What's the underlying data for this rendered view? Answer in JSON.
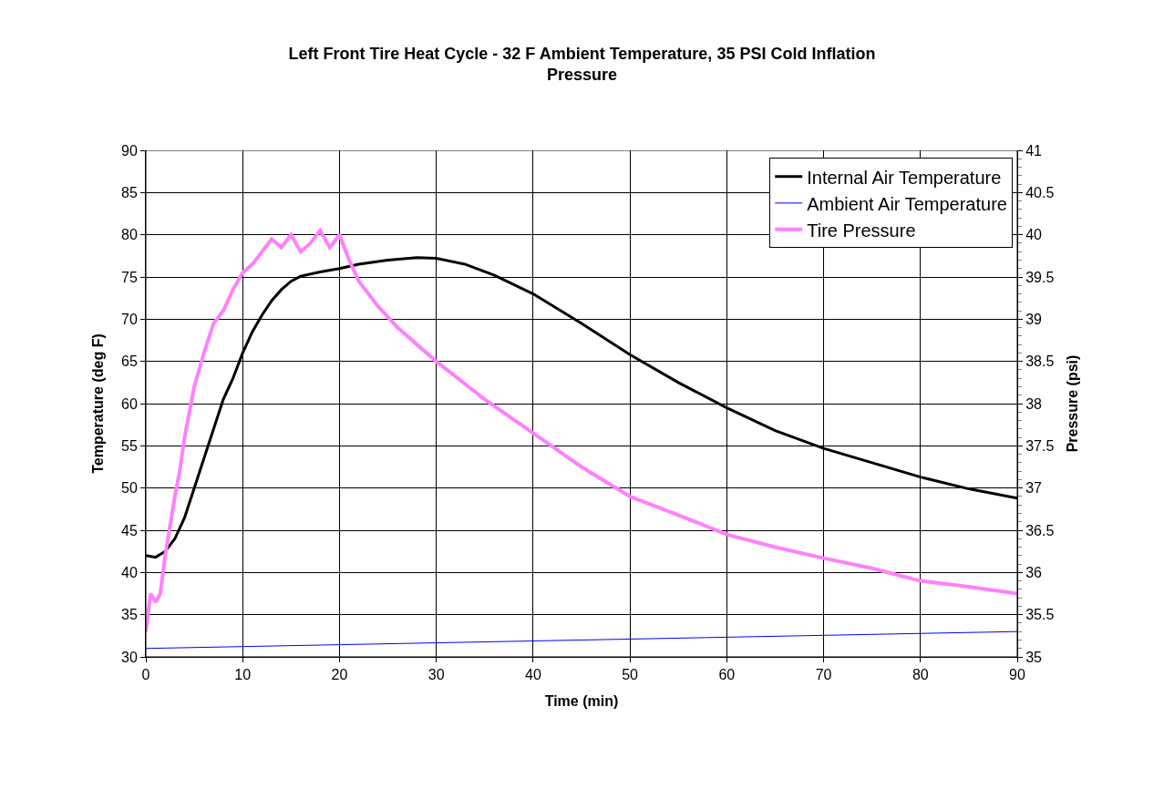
{
  "chart_data": {
    "type": "line",
    "title": "Left Front Tire Heat Cycle - 32 F Ambient Temperature, 35 PSI Cold Inflation Pressure",
    "xlabel": "Time (min)",
    "ylabel": "Temperature (deg F)",
    "y2label": "Pressure (psi)",
    "xlim": [
      0,
      90
    ],
    "xticks": [
      0,
      10,
      20,
      30,
      40,
      50,
      60,
      70,
      80,
      90
    ],
    "ylim": [
      30,
      90
    ],
    "yticks": [
      30,
      35,
      40,
      45,
      50,
      55,
      60,
      65,
      70,
      75,
      80,
      85,
      90
    ],
    "y2lim": [
      35,
      41
    ],
    "y2ticks": [
      35,
      35.5,
      36,
      36.5,
      37,
      37.5,
      38,
      38.5,
      39,
      39.5,
      40,
      40.5,
      41
    ],
    "grid": true,
    "legend": "top right",
    "marker": "none",
    "line_style": "solid",
    "series": [
      {
        "name": "Internal Air Temperature",
        "color": "#000000",
        "x": [
          0,
          1,
          2,
          3,
          4,
          5,
          6,
          7,
          8,
          9,
          10,
          11,
          12,
          13,
          14,
          15,
          16,
          18,
          20,
          22,
          25,
          28,
          30,
          33,
          36,
          40,
          45,
          50,
          55,
          60,
          65,
          70,
          75,
          80,
          85,
          90
        ],
        "values": [
          42,
          41.8,
          42.5,
          44,
          46.5,
          50,
          53.5,
          57,
          60.5,
          63,
          66,
          68.5,
          70.5,
          72.2,
          73.5,
          74.5,
          75.1,
          75.6,
          76,
          76.5,
          77,
          77.3,
          77.2,
          76.5,
          75.2,
          73,
          69.5,
          65.8,
          62.5,
          59.5,
          56.8,
          54.7,
          53,
          51.3,
          49.9,
          48.8
        ]
      },
      {
        "name": "Ambient Air Temperature",
        "color": "#0000ff",
        "x": [
          0,
          90
        ],
        "values": [
          31,
          33
        ]
      },
      {
        "name": "Tire Pressure",
        "color": "#ff80ff",
        "axis": "y2",
        "x": [
          0,
          0.5,
          1,
          1.5,
          2,
          2.5,
          3,
          3.5,
          4,
          4.5,
          5,
          5.5,
          6,
          7,
          8,
          9,
          10,
          11,
          12,
          13,
          14,
          15,
          16,
          17,
          18,
          19,
          20,
          21,
          22,
          24,
          26,
          28,
          30,
          35,
          40,
          45,
          50,
          55,
          60,
          65,
          70,
          75,
          80,
          85,
          90
        ],
        "values": [
          35.3,
          35.75,
          35.65,
          35.75,
          36.2,
          36.55,
          36.9,
          37.2,
          37.6,
          37.9,
          38.2,
          38.4,
          38.6,
          38.95,
          39.1,
          39.35,
          39.55,
          39.65,
          39.8,
          39.95,
          39.85,
          40.0,
          39.8,
          39.9,
          40.05,
          39.85,
          40.0,
          39.7,
          39.45,
          39.15,
          38.9,
          38.7,
          38.5,
          38.05,
          37.65,
          37.25,
          36.9,
          36.68,
          36.45,
          36.3,
          36.17,
          36.05,
          35.9,
          35.83,
          35.75
        ]
      }
    ]
  }
}
